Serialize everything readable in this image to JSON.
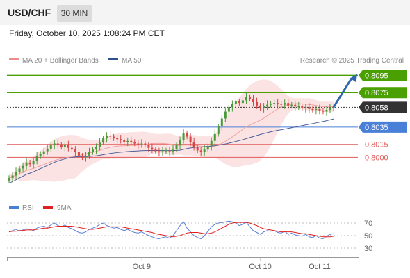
{
  "header": {
    "pair": "USD/CHF",
    "timeframe": "30 MIN"
  },
  "datetime": "Friday, October 10, 2025 1:08:24 PM CET",
  "legend": {
    "ma20": "MA 20 + Bollinger Bands",
    "ma50": "MA 50",
    "credit": "Research © 2025 Trading Central"
  },
  "rsi_legend": {
    "rsi": "RSI",
    "ma": "9MA"
  },
  "colors": {
    "green": "#4aa000",
    "blue": "#4a7fd8",
    "red": "#e05a5a",
    "dark": "#333333",
    "up": "#4a9a3a",
    "down": "#d84545",
    "band": "#fbe3e3",
    "ma50": "#4a5d9a",
    "arrow": "#2f66b0"
  },
  "chart_data": {
    "type": "candlestick",
    "price_axis": {
      "min": 0.796,
      "max": 0.8105
    },
    "levels": [
      {
        "value": 0.8095,
        "label": "0.8095",
        "color": "#4aa000",
        "boxed": true
      },
      {
        "value": 0.8075,
        "label": "0.8075",
        "color": "#4aa000",
        "boxed": true
      },
      {
        "value": 0.8058,
        "label": "0.8058",
        "color": "#333333",
        "boxed": true,
        "dotted": true
      },
      {
        "value": 0.8035,
        "label": "0.8035",
        "color": "#4a7fd8",
        "boxed": true
      },
      {
        "value": 0.8015,
        "label": "0.8015",
        "color": "#e05a5a",
        "boxed": false
      },
      {
        "value": 0.8,
        "label": "0.8000",
        "color": "#e05a5a",
        "boxed": false
      }
    ],
    "x_labels": [
      "Oct 9",
      "Oct 10",
      "Oct 11"
    ],
    "x_label_index": [
      38,
      72,
      89
    ],
    "closes": [
      0.7976,
      0.7979,
      0.7983,
      0.7987,
      0.799,
      0.7994,
      0.7992,
      0.7996,
      0.8001,
      0.8004,
      0.8007,
      0.801,
      0.8014,
      0.8016,
      0.8015,
      0.8012,
      0.8014,
      0.8011,
      0.8009,
      0.8006,
      0.8002,
      0.8,
      0.8002,
      0.8006,
      0.8009,
      0.8012,
      0.8017,
      0.8022,
      0.8025,
      0.8024,
      0.8022,
      0.8021,
      0.802,
      0.8018,
      0.8019,
      0.8018,
      0.8016,
      0.8015,
      0.8016,
      0.8014,
      0.8011,
      0.8009,
      0.8007,
      0.8006,
      0.8007,
      0.8008,
      0.8007,
      0.8009,
      0.8014,
      0.802,
      0.8028,
      0.8024,
      0.8018,
      0.8012,
      0.8008,
      0.8006,
      0.8009,
      0.8013,
      0.8019,
      0.8027,
      0.8036,
      0.8045,
      0.8053,
      0.8058,
      0.8062,
      0.8065,
      0.8063,
      0.8066,
      0.807,
      0.8068,
      0.8064,
      0.806,
      0.8057,
      0.8059,
      0.8061,
      0.8062,
      0.8063,
      0.8062,
      0.8061,
      0.8063,
      0.806,
      0.8061,
      0.8059,
      0.8059,
      0.8057,
      0.8058,
      0.8056,
      0.8055,
      0.8056,
      0.8054,
      0.8053,
      0.8055,
      0.8057,
      0.8058
    ],
    "rsi": {
      "levels": [
        70,
        50,
        30
      ],
      "min": 20,
      "max": 80,
      "values": [
        56,
        58,
        60,
        57,
        59,
        61,
        60,
        58,
        62,
        64,
        65,
        63,
        67,
        70,
        66,
        64,
        67,
        63,
        61,
        58,
        55,
        54,
        56,
        60,
        62,
        64,
        68,
        70,
        66,
        64,
        62,
        63,
        60,
        58,
        60,
        57,
        55,
        54,
        56,
        53,
        50,
        48,
        46,
        45,
        47,
        48,
        46,
        50,
        58,
        66,
        72,
        62,
        56,
        50,
        47,
        45,
        50,
        57,
        64,
        68,
        70,
        71,
        72,
        73,
        72,
        70,
        66,
        68,
        71,
        64,
        58,
        55,
        52,
        56,
        58,
        57,
        58,
        55,
        54,
        57,
        52,
        54,
        51,
        50,
        49,
        52,
        48,
        47,
        50,
        46,
        45,
        49,
        52,
        53
      ],
      "ma9": [
        56,
        57,
        57,
        58,
        58,
        59,
        59,
        59,
        60,
        61,
        62,
        62,
        63,
        64,
        65,
        65,
        65,
        65,
        65,
        64,
        63,
        62,
        61,
        60,
        60,
        61,
        62,
        63,
        64,
        64,
        64,
        64,
        64,
        63,
        62,
        61,
        60,
        59,
        58,
        57,
        56,
        55,
        53,
        52,
        51,
        50,
        49,
        48,
        49,
        50,
        52,
        54,
        55,
        55,
        55,
        54,
        53,
        53,
        54,
        56,
        59,
        62,
        65,
        68,
        70,
        71,
        71,
        71,
        71,
        70,
        68,
        66,
        63,
        61,
        60,
        59,
        58,
        57,
        56,
        56,
        56,
        56,
        55,
        54,
        53,
        53,
        52,
        51,
        50,
        49,
        48,
        48,
        48,
        49
      ]
    }
  }
}
